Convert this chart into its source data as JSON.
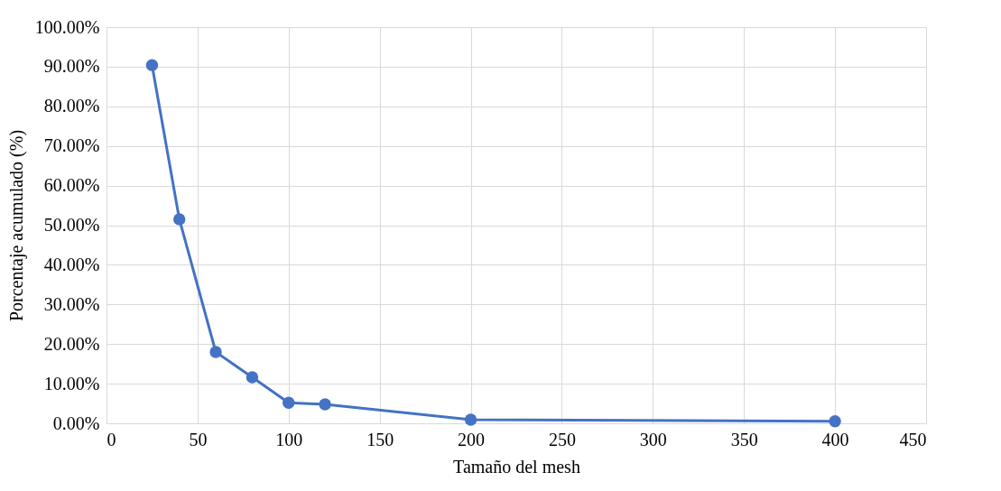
{
  "chart_data": {
    "type": "line",
    "xlabel": "Tamaño del mesh",
    "ylabel": "Porcentaje acumulado (%)",
    "x": [
      25,
      40,
      60,
      80,
      100,
      120,
      200,
      400
    ],
    "series": [
      {
        "color": "#4472c4",
        "values": [
          90.4,
          51.5,
          18.0,
          11.6,
          5.2,
          4.8,
          0.9,
          0.5
        ]
      }
    ],
    "xlim": [
      0,
      450
    ],
    "xticks": [
      0,
      50,
      100,
      150,
      200,
      250,
      300,
      350,
      400,
      450
    ],
    "ylim": [
      0,
      100
    ],
    "yticks": [
      {
        "value": 0,
        "label": "0.00%"
      },
      {
        "value": 10,
        "label": "10.00%"
      },
      {
        "value": 20,
        "label": "20.00%"
      },
      {
        "value": 30,
        "label": "30.00%"
      },
      {
        "value": 40,
        "label": "40.00%"
      },
      {
        "value": 50,
        "label": "50.00%"
      },
      {
        "value": 60,
        "label": "60.00%"
      },
      {
        "value": 70,
        "label": "70.00%"
      },
      {
        "value": 80,
        "label": "80.00%"
      },
      {
        "value": 90,
        "label": "90.00%"
      },
      {
        "value": 100,
        "label": "100.00%"
      }
    ],
    "grid": true,
    "marker": "circle",
    "line_style": "solid"
  }
}
